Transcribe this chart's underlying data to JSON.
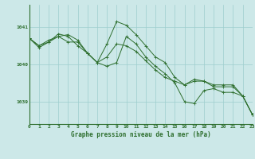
{
  "title": "Graphe pression niveau de la mer (hPa)",
  "bg_color": "#cce8e8",
  "grid_color": "#9ecece",
  "line_color": "#2d6e2d",
  "xlim": [
    0,
    23
  ],
  "ylim": [
    1038.4,
    1041.6
  ],
  "yticks": [
    1039,
    1040,
    1041
  ],
  "xticks": [
    0,
    1,
    2,
    3,
    4,
    5,
    6,
    7,
    8,
    9,
    10,
    11,
    12,
    13,
    14,
    15,
    16,
    17,
    18,
    19,
    20,
    21,
    22,
    23
  ],
  "series": [
    [
      1040.7,
      1040.5,
      1040.65,
      1040.75,
      1040.8,
      1040.65,
      1040.3,
      1040.05,
      1040.55,
      1041.15,
      1041.05,
      1040.8,
      1040.5,
      1040.2,
      1040.05,
      1039.65,
      1039.45,
      1039.55,
      1039.55,
      1039.45,
      1039.45,
      1039.45,
      1039.15,
      1038.65
    ],
    [
      1040.7,
      1040.5,
      1040.6,
      1040.75,
      1040.6,
      1040.6,
      1040.3,
      1040.05,
      1040.2,
      1040.55,
      1040.5,
      1040.35,
      1040.1,
      1039.85,
      1039.65,
      1039.55,
      1039.45,
      1039.6,
      1039.55,
      1039.4,
      1039.4,
      1039.4,
      1039.15,
      1038.65
    ],
    [
      1040.7,
      1040.45,
      1040.6,
      1040.82,
      1040.75,
      1040.5,
      1040.3,
      1040.05,
      1039.95,
      1040.05,
      1040.75,
      1040.55,
      1040.2,
      1039.95,
      1039.75,
      1039.5,
      1039.0,
      1038.95,
      1039.3,
      1039.35,
      1039.25,
      1039.25,
      1039.15,
      1038.65
    ]
  ],
  "xlabel_fontsize": 5.5,
  "ylabel_fontsize": 5.5,
  "tick_fontsize": 4.5,
  "linewidth": 0.7,
  "markersize": 2.5
}
